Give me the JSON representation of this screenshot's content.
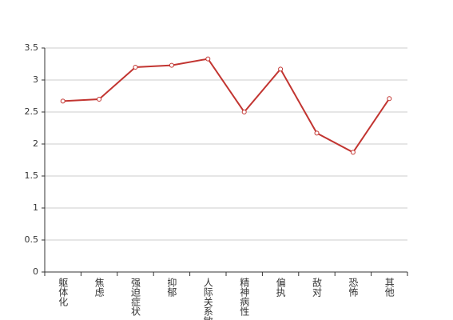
{
  "chart_data": {
    "type": "line",
    "categories": [
      "躯体化",
      "焦虑",
      "强迫症状",
      "抑郁",
      "人际关系敏感",
      "精神病性",
      "偏执",
      "敌对",
      "恐怖",
      "其他"
    ],
    "values": [
      2.67,
      2.7,
      3.2,
      3.23,
      3.33,
      2.5,
      3.17,
      2.17,
      1.87,
      2.71
    ],
    "color": "#c23531",
    "ylim": [
      0,
      3.5
    ],
    "yticks": [
      0,
      0.5,
      1,
      1.5,
      2,
      2.5,
      3,
      3.5
    ],
    "grid": true
  }
}
